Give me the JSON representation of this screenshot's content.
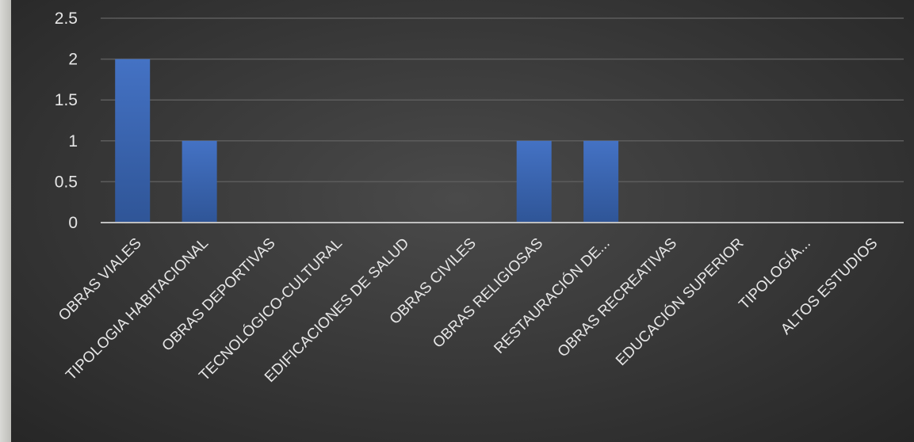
{
  "colors": {
    "bar": "#4472c4",
    "bar_dark": "#2f5597",
    "gridline": "#5c5c5c",
    "axis": "#bfbfbf",
    "text": "#e6e6e6"
  },
  "chart_data": {
    "type": "bar",
    "categories": [
      "OBRAS VIALES",
      "TIPOLOGIA HABITACIONAL",
      "OBRAS DEPORTIVAS",
      "TECNOLÓGICO-CULTURAL",
      "EDIFICACIONES DE SALUD",
      "OBRAS CIVILES",
      "OBRAS RELIGIOSAS",
      "RESTAURACIÓN DE...",
      "OBRAS RECREATIVAS",
      "EDUCACIÓN SUPERIOR",
      "TIPOLOGÍA...",
      "ALTOS ESTUDIOS"
    ],
    "values": [
      2,
      1,
      0,
      0,
      0,
      0,
      1,
      1,
      0,
      0,
      0,
      0
    ],
    "yticks": [
      "0",
      "0.5",
      "1",
      "1.5",
      "2",
      "2.5"
    ],
    "ylim": [
      0,
      2.5
    ],
    "grid": true,
    "title": "",
    "xlabel": "",
    "ylabel": ""
  }
}
